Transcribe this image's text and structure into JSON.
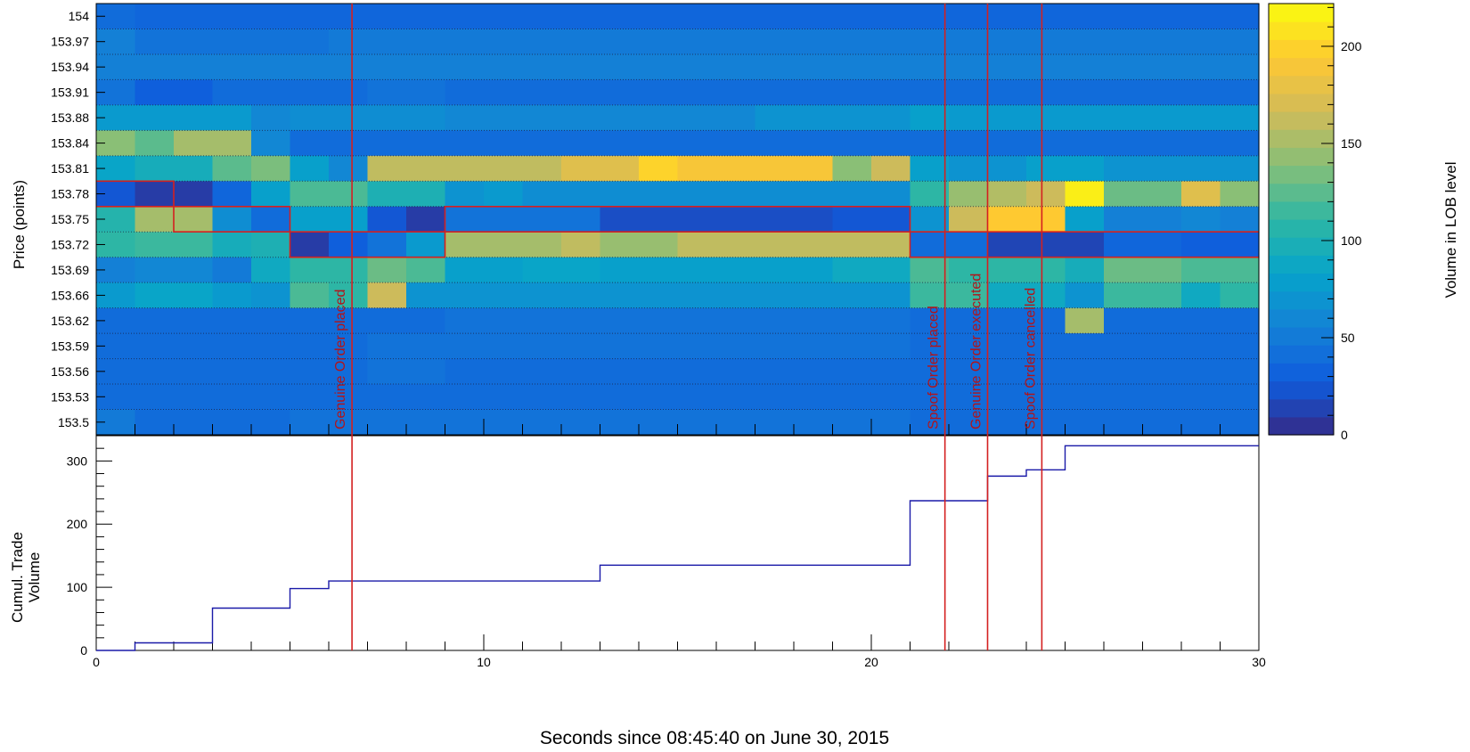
{
  "chart_data": [
    {
      "type": "heatmap",
      "ylabel": "Price (points)",
      "xlabel": "Seconds since 08:45:40 on June 30, 2015",
      "xlim": [
        0,
        30
      ],
      "y_tick_labels": [
        "154",
        "153.97",
        "153.94",
        "153.91",
        "153.88",
        "153.84",
        "153.81",
        "153.78",
        "153.75",
        "153.72",
        "153.69",
        "153.66",
        "153.62",
        "153.59",
        "153.56",
        "153.53",
        "153.5"
      ],
      "x_bin_edges": [
        0,
        1,
        2,
        3,
        4,
        5,
        6,
        7,
        8,
        9,
        10,
        11,
        12,
        13,
        14,
        15,
        16,
        17,
        18,
        19,
        20,
        21,
        22,
        23,
        24,
        25,
        26,
        27,
        28,
        29,
        30
      ],
      "x_ticks": [
        0,
        10,
        20,
        30
      ],
      "values_note_rows_top_to_bottom": "each row lists volume per 1-second bin",
      "values": [
        [
          40,
          35,
          35,
          35,
          35,
          35,
          35,
          35,
          35,
          35,
          35,
          35,
          35,
          35,
          35,
          35,
          35,
          35,
          35,
          35,
          35,
          35,
          35,
          35,
          35,
          35,
          35,
          35,
          35,
          35
        ],
        [
          55,
          45,
          45,
          45,
          45,
          45,
          50,
          50,
          50,
          50,
          50,
          50,
          50,
          50,
          50,
          50,
          50,
          50,
          50,
          50,
          50,
          50,
          50,
          50,
          50,
          50,
          50,
          50,
          50,
          50
        ],
        [
          55,
          55,
          55,
          55,
          55,
          55,
          55,
          55,
          55,
          55,
          55,
          55,
          55,
          55,
          55,
          55,
          55,
          55,
          55,
          55,
          55,
          55,
          55,
          55,
          55,
          55,
          55,
          55,
          55,
          55
        ],
        [
          45,
          30,
          30,
          40,
          40,
          40,
          40,
          45,
          45,
          40,
          40,
          40,
          40,
          40,
          40,
          40,
          40,
          40,
          40,
          40,
          40,
          40,
          40,
          40,
          40,
          40,
          40,
          40,
          40,
          40
        ],
        [
          75,
          75,
          75,
          75,
          60,
          65,
          65,
          65,
          65,
          60,
          60,
          60,
          60,
          60,
          60,
          60,
          60,
          70,
          70,
          70,
          70,
          80,
          75,
          75,
          75,
          75,
          75,
          75,
          75,
          75
        ],
        [
          140,
          125,
          150,
          150,
          60,
          40,
          40,
          40,
          40,
          40,
          40,
          40,
          40,
          40,
          40,
          40,
          40,
          40,
          40,
          40,
          40,
          40,
          40,
          40,
          40,
          40,
          40,
          40,
          40,
          40
        ],
        [
          85,
          95,
          95,
          125,
          135,
          80,
          60,
          160,
          160,
          160,
          160,
          160,
          175,
          175,
          200,
          190,
          190,
          190,
          190,
          140,
          165,
          80,
          70,
          70,
          80,
          80,
          70,
          70,
          70,
          70
        ],
        [
          25,
          10,
          10,
          35,
          80,
          120,
          120,
          100,
          100,
          70,
          75,
          65,
          65,
          65,
          65,
          65,
          65,
          65,
          65,
          65,
          65,
          110,
          145,
          155,
          165,
          215,
          130,
          130,
          175,
          140
        ],
        [
          105,
          150,
          150,
          65,
          40,
          80,
          80,
          25,
          10,
          45,
          45,
          45,
          45,
          20,
          20,
          20,
          20,
          20,
          20,
          25,
          25,
          70,
          165,
          195,
          195,
          80,
          55,
          55,
          60,
          55
        ],
        [
          110,
          115,
          115,
          95,
          100,
          10,
          30,
          45,
          75,
          150,
          150,
          150,
          160,
          145,
          145,
          160,
          160,
          160,
          160,
          160,
          160,
          40,
          40,
          15,
          15,
          15,
          35,
          35,
          30,
          30
        ],
        [
          55,
          60,
          60,
          50,
          90,
          110,
          110,
          130,
          120,
          80,
          80,
          85,
          85,
          80,
          80,
          80,
          80,
          80,
          80,
          90,
          90,
          120,
          110,
          110,
          110,
          95,
          130,
          130,
          120,
          120
        ],
        [
          75,
          85,
          85,
          75,
          70,
          120,
          110,
          165,
          70,
          70,
          70,
          70,
          70,
          70,
          70,
          70,
          70,
          70,
          70,
          70,
          70,
          115,
          115,
          90,
          90,
          70,
          115,
          115,
          90,
          110
        ],
        [
          40,
          40,
          40,
          40,
          40,
          40,
          40,
          40,
          40,
          45,
          45,
          45,
          45,
          45,
          45,
          45,
          45,
          45,
          45,
          45,
          45,
          40,
          40,
          40,
          40,
          150,
          40,
          40,
          40,
          40
        ],
        [
          40,
          40,
          40,
          40,
          40,
          40,
          40,
          45,
          45,
          45,
          45,
          45,
          45,
          45,
          45,
          45,
          45,
          45,
          45,
          45,
          45,
          40,
          40,
          40,
          40,
          40,
          40,
          40,
          40,
          40
        ],
        [
          40,
          40,
          40,
          40,
          40,
          40,
          40,
          45,
          45,
          40,
          40,
          40,
          40,
          40,
          40,
          40,
          40,
          40,
          40,
          40,
          40,
          40,
          40,
          40,
          40,
          40,
          40,
          40,
          40,
          40
        ],
        [
          40,
          40,
          40,
          40,
          40,
          40,
          40,
          40,
          40,
          40,
          40,
          40,
          40,
          40,
          40,
          40,
          40,
          40,
          40,
          40,
          40,
          40,
          40,
          40,
          40,
          40,
          40,
          40,
          40,
          40
        ],
        [
          50,
          40,
          40,
          40,
          40,
          45,
          45,
          45,
          45,
          45,
          45,
          45,
          45,
          45,
          45,
          45,
          45,
          45,
          45,
          45,
          45,
          40,
          40,
          40,
          40,
          40,
          40,
          40,
          40,
          40
        ]
      ],
      "colorbar": {
        "label": "Volume in LOB level",
        "ticks": [
          0,
          50,
          100,
          150,
          200
        ],
        "range": [
          0,
          222
        ],
        "colors": [
          "#352a87",
          "#0f5cdd",
          "#1481d6",
          "#06a4ca",
          "#2eb7a4",
          "#87bf77",
          "#d1bb59",
          "#fec832",
          "#f9fb0e"
        ]
      },
      "outline_color": "#d42020",
      "outline_path_rows": [
        7,
        7,
        8,
        8,
        8,
        9,
        9,
        9,
        9,
        8,
        8,
        8,
        8,
        8,
        8,
        8,
        8,
        8,
        8,
        8,
        8,
        9,
        9,
        9,
        9,
        9,
        9,
        9,
        9,
        9
      ],
      "event_markers": [
        {
          "x": 6.6,
          "label": "Genuine Order placed"
        },
        {
          "x": 21.9,
          "label": "Spoof Order placed"
        },
        {
          "x": 23.0,
          "label": "Genuine Order executed"
        },
        {
          "x": 24.4,
          "label": "Spoof Order cancelled"
        }
      ],
      "marker_color": "#d42020"
    },
    {
      "type": "line",
      "step": true,
      "ylabel_lines": [
        "Cumul. Trade",
        "Volume"
      ],
      "xlabel": "Seconds since 08:45:40 on June 30, 2015",
      "xlim": [
        0,
        30
      ],
      "ylim": [
        0,
        340
      ],
      "x_ticks": [
        0,
        10,
        20,
        30
      ],
      "y_ticks": [
        0,
        100,
        200,
        300
      ],
      "line_color": "#1a1aa8",
      "x": [
        0,
        1,
        3,
        5,
        6,
        13,
        21,
        23,
        24,
        25,
        30
      ],
      "y": [
        0,
        12,
        67,
        98,
        110,
        135,
        237,
        276,
        286,
        324,
        324
      ]
    }
  ]
}
